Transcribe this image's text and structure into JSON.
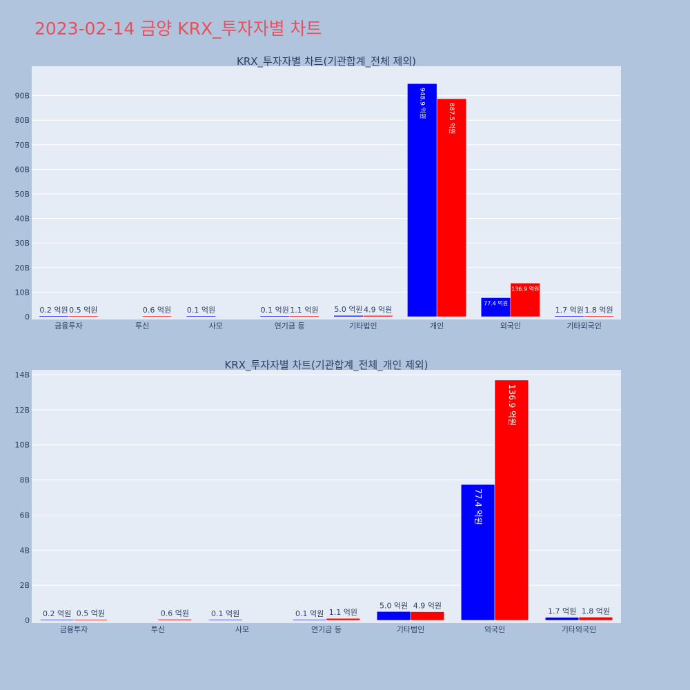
{
  "page_title": "2023-02-14 금양 KRX_투자자별 차트",
  "chart_data": [
    {
      "type": "bar",
      "title": "KRX_투자자별 차트(기관합계_전체 제외)",
      "categories": [
        "금융투자",
        "투신",
        "사모",
        "연기금 등",
        "기타법인",
        "개인",
        "외국인",
        "기타외국인"
      ],
      "y_ticks": [
        "0",
        "10B",
        "20B",
        "30B",
        "40B",
        "50B",
        "60B",
        "70B",
        "80B",
        "90B"
      ],
      "ylim": [
        0,
        100000000000
      ],
      "series": [
        {
          "color": "#0000ff",
          "values": [
            20000000,
            null,
            10000000,
            10000000,
            500000000,
            94890000000,
            7740000000,
            170000000
          ],
          "labels": [
            "0.2 억원",
            "",
            "0.1 억원",
            "0.1 억원",
            "5.0 억원",
            "948.9 억원",
            "77.4 억원",
            "1.7 억원"
          ]
        },
        {
          "color": "#ff0000",
          "values": [
            50000000,
            60000000,
            null,
            110000000,
            490000000,
            88750000000,
            13690000000,
            180000000
          ],
          "labels": [
            "0.5 억원",
            "0.6 억원",
            "",
            "1.1 억원",
            "4.9 억원",
            "887.5 억원",
            "136.9 억원",
            "1.8 억원"
          ]
        }
      ]
    },
    {
      "type": "bar",
      "title": "KRX_투자자별 차트(기관합계_전체_개인 제외)",
      "categories": [
        "금융투자",
        "투신",
        "사모",
        "연기금 등",
        "기타법인",
        "외국인",
        "기타외국인"
      ],
      "y_ticks": [
        "0",
        "2B",
        "4B",
        "6B",
        "8B",
        "10B",
        "12B",
        "14B"
      ],
      "ylim": [
        0,
        14000000000
      ],
      "series": [
        {
          "color": "#0000ff",
          "values": [
            20000000,
            null,
            10000000,
            10000000,
            500000000,
            7740000000,
            170000000
          ],
          "labels": [
            "0.2 억원",
            "",
            "0.1 억원",
            "0.1 억원",
            "5.0 억원",
            "77.4 억원",
            "1.7 억원"
          ]
        },
        {
          "color": "#ff0000",
          "values": [
            50000000,
            60000000,
            null,
            110000000,
            490000000,
            13690000000,
            180000000
          ],
          "labels": [
            "0.5 억원",
            "0.6 억원",
            "",
            "1.1 억원",
            "4.9 억원",
            "136.9 억원",
            "1.8 억원"
          ]
        }
      ]
    }
  ]
}
